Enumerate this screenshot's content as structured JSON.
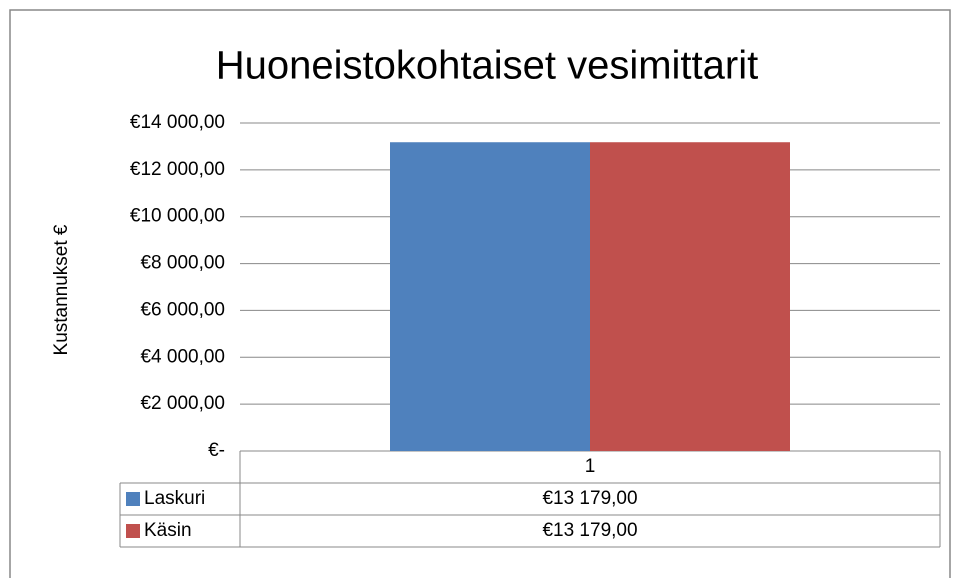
{
  "chart_data": {
    "type": "bar",
    "title": "Huoneistokohtaiset vesimittarit",
    "y_label": "Kustannukset €",
    "categories": [
      "1"
    ],
    "series": [
      {
        "name": "Laskuri",
        "color": "#4f81bd",
        "values": [
          13179
        ],
        "value_labels": [
          "€13 179,00"
        ]
      },
      {
        "name": "Käsin",
        "color": "#c0504d",
        "values": [
          13179
        ],
        "value_labels": [
          "€13 179,00"
        ]
      }
    ],
    "ylim": [
      0,
      14000
    ],
    "yticks": [
      {
        "value": 0,
        "label": "€-"
      },
      {
        "value": 2000,
        "label": "€2 000,00"
      },
      {
        "value": 4000,
        "label": "€4 000,00"
      },
      {
        "value": 6000,
        "label": "€6 000,00"
      },
      {
        "value": 8000,
        "label": "€8 000,00"
      },
      {
        "value": 10000,
        "label": "€10 000,00"
      },
      {
        "value": 12000,
        "label": "€12 000,00"
      },
      {
        "value": 14000,
        "label": "€14 000,00"
      }
    ],
    "grid": true
  }
}
